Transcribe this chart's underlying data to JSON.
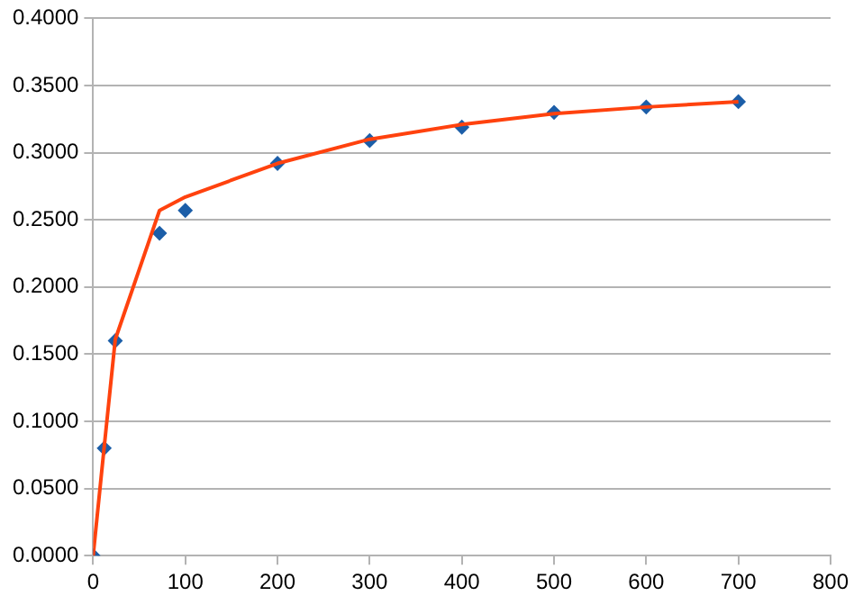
{
  "chart_data": {
    "type": "scatter",
    "xlim": [
      0,
      800
    ],
    "xticks": [
      0,
      100,
      200,
      300,
      400,
      500,
      600,
      700,
      800
    ],
    "ylim": [
      0,
      0.4
    ],
    "yticks": [
      {
        "value": 0,
        "label": "0.0000"
      },
      {
        "value": 0.05,
        "label": "0.0500"
      },
      {
        "value": 0.1,
        "label": "0.1000"
      },
      {
        "value": 0.15,
        "label": "0.1500"
      },
      {
        "value": 0.2,
        "label": "0.2000"
      },
      {
        "value": 0.25,
        "label": "0.2500"
      },
      {
        "value": 0.3,
        "label": "0.3000"
      },
      {
        "value": 0.35,
        "label": "0.3500"
      },
      {
        "value": 0.4,
        "label": "0.4000"
      }
    ],
    "grid": "y",
    "legend": false,
    "series": [
      {
        "type": "line",
        "color": "#ff420e",
        "marker": "none",
        "x": [
          0,
          12,
          24,
          72,
          100,
          200,
          300,
          400,
          500,
          600,
          700
        ],
        "values": [
          0,
          0.081,
          0.161,
          0.257,
          0.267,
          0.292,
          0.31,
          0.321,
          0.329,
          0.334,
          0.338
        ]
      },
      {
        "type": "scatter",
        "color": "#1c5ea8",
        "marker": "diamond",
        "x": [
          0,
          12,
          24,
          72,
          100,
          200,
          300,
          400,
          500,
          600,
          700
        ],
        "values": [
          0,
          0.08,
          0.16,
          0.24,
          0.257,
          0.292,
          0.309,
          0.319,
          0.33,
          0.334,
          0.338
        ]
      }
    ]
  }
}
